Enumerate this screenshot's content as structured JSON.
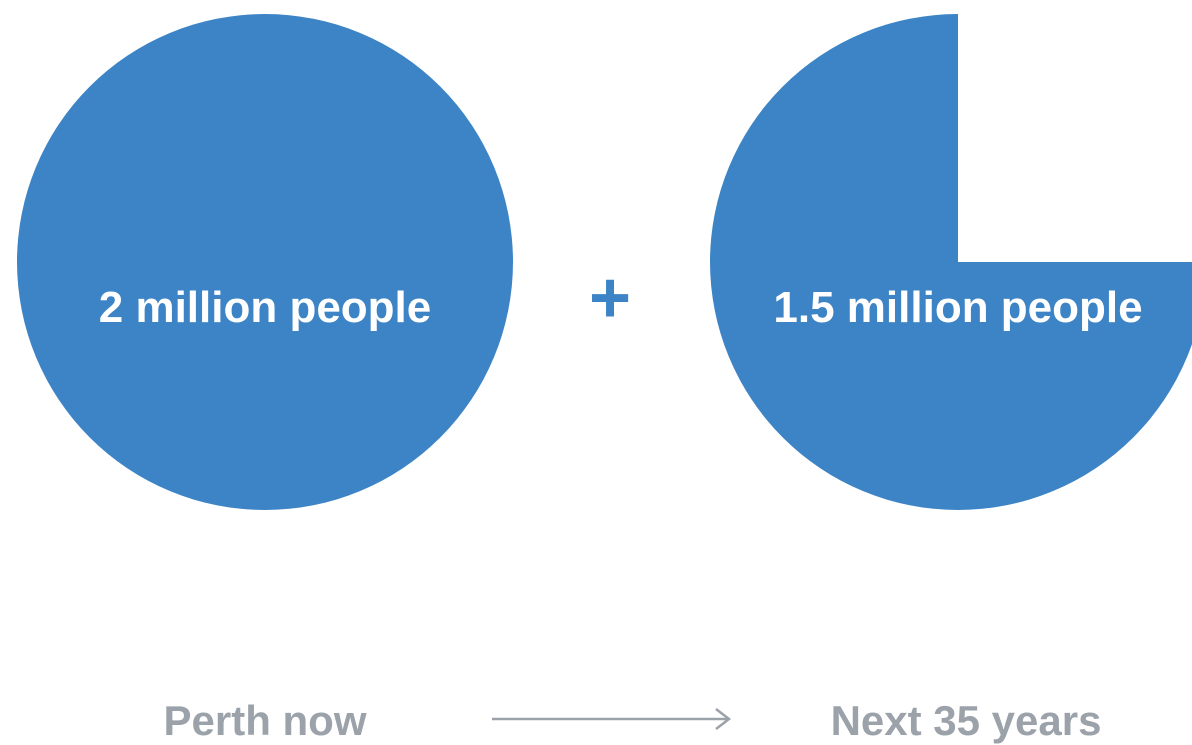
{
  "chart_data": {
    "type": "pie",
    "items": [
      {
        "label": "2 million people",
        "value_millions": 2,
        "fraction_of_full_circle": 1.0,
        "caption": "Perth now"
      },
      {
        "label": "1.5 million people",
        "value_millions": 1.5,
        "fraction_of_full_circle": 0.75,
        "caption": "Next 35 years"
      }
    ],
    "operator": "+",
    "arrow": "→"
  },
  "colors": {
    "circle_fill": "#3d84c6",
    "plus": "#3d84c6",
    "caption_text": "#9ba2a9",
    "arrow": "#9ba2a9"
  }
}
